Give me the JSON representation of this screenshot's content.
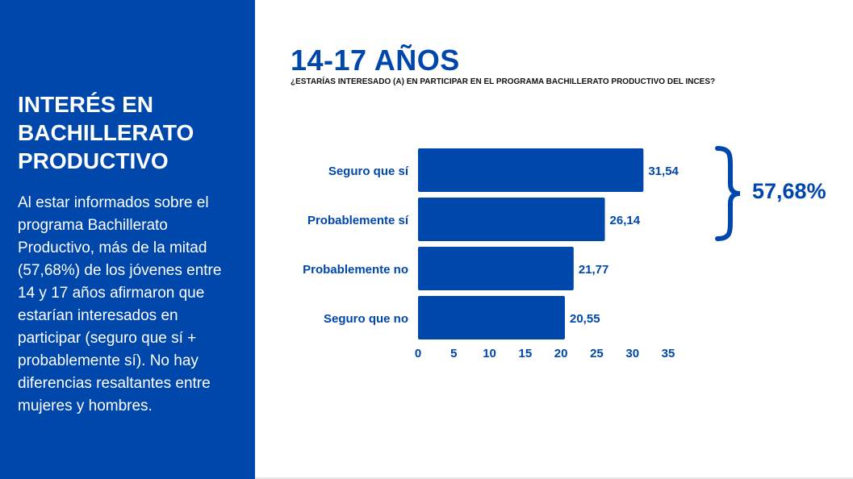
{
  "sidebar": {
    "title": "INTERÉS EN BACHILLERATO PRODUCTIVO",
    "body": "Al estar informados sobre el programa Bachillerato Productivo, más de la mitad (57,68%) de los jóvenes entre 14 y 17 años afirmaron que estarían interesados en participar (seguro que sí + probablemente sí). No hay diferencias resaltantes entre mujeres y hombres."
  },
  "main": {
    "title": "14-17 AÑOS",
    "subtitle": "¿ESTARÍAS INTERESADO (A) EN PARTICIPAR EN EL PROGRAMA BACHILLERATO PRODUCTIVO DEL INCES?"
  },
  "colors": {
    "accent": "#0047ab",
    "bar": "#0047ab",
    "text_dark": "#111111"
  },
  "chart_data": {
    "type": "bar",
    "orientation": "horizontal",
    "categories": [
      "Seguro que sí",
      "Probablemente sí",
      "Probablemente no",
      "Seguro que no"
    ],
    "values": [
      31.54,
      26.14,
      21.77,
      20.55
    ],
    "value_labels": [
      "31,54",
      "26,14",
      "21,77",
      "20,55"
    ],
    "xlim": [
      0,
      35
    ],
    "x_ticks": [
      0,
      5,
      10,
      15,
      20,
      25,
      30,
      35
    ],
    "grid": false,
    "annotation": {
      "bracket_categories": [
        "Seguro que sí",
        "Probablemente sí"
      ],
      "label": "57,68%"
    }
  }
}
